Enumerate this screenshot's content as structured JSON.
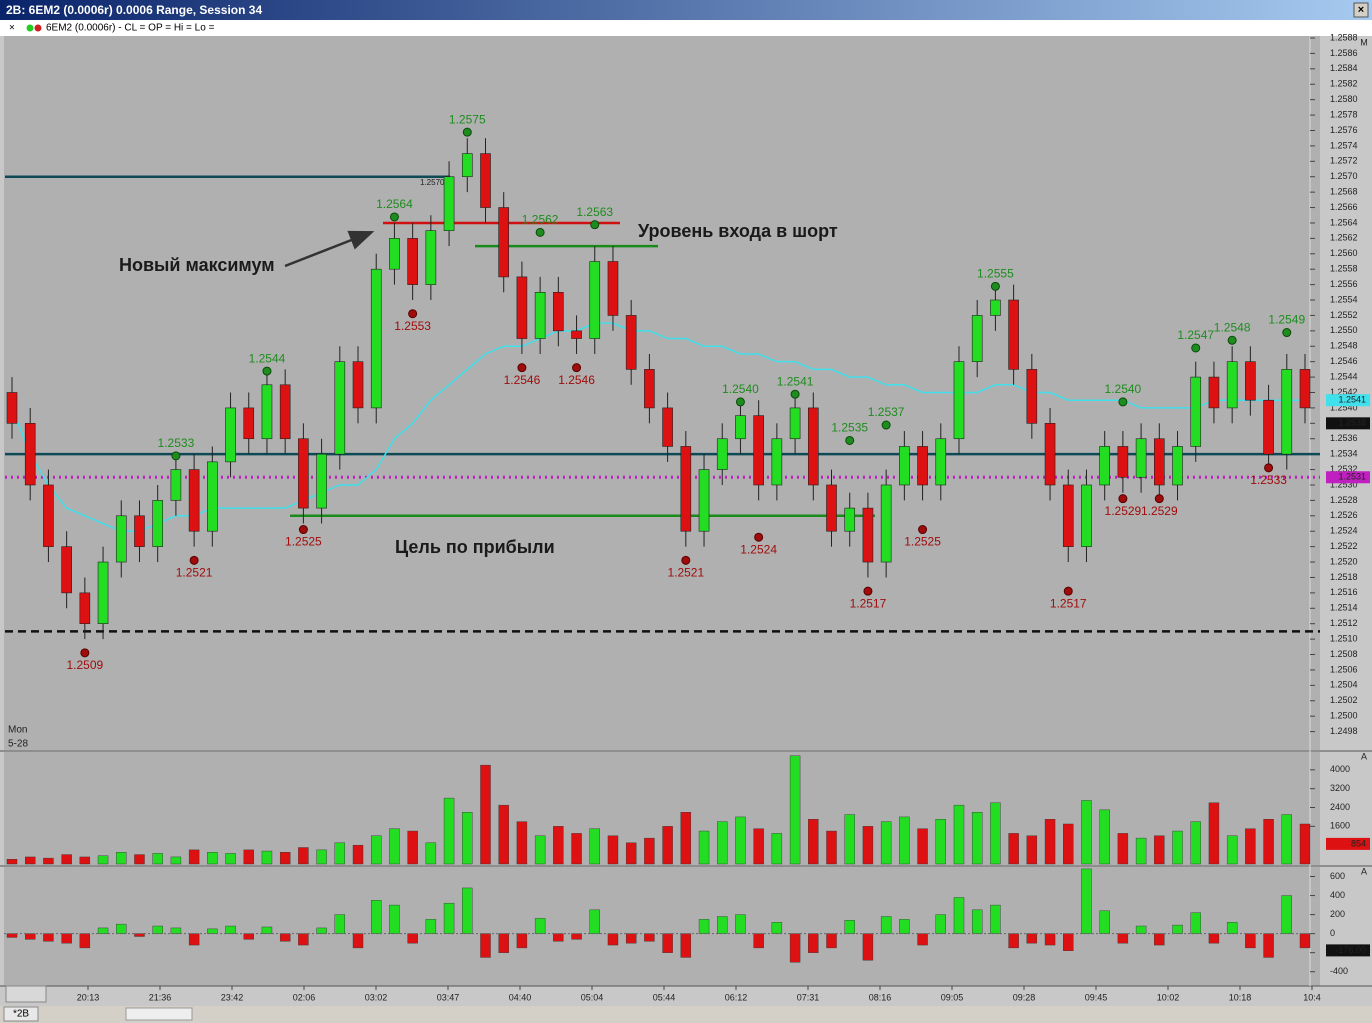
{
  "window": {
    "title": "2B: 6EM2 (0.0006r) 0.0006 Range, Session 34",
    "indicator_line": "6EM2 (0.0006r) - CL = OP = Hi = Lo =",
    "tab": "*2B",
    "day": "Mon",
    "date": "5-28"
  },
  "time_labels": [
    "20:13",
    "21:36",
    "23:42",
    "02:06",
    "03:02",
    "03:47",
    "04:40",
    "05:04",
    "05:44",
    "06:12",
    "07:31",
    "08:16",
    "09:05",
    "09:28",
    "09:45",
    "10:02",
    "10:18",
    "10:4"
  ],
  "chart_data": [
    {
      "type": "candlestick",
      "up_color": "#22dd22",
      "down_color": "#dd1111",
      "ylim": [
        1.2496,
        1.2588
      ],
      "yticks": [
        1.2588,
        1.2586,
        1.2584,
        1.2582,
        {
          "value": 1.258,
          "label": "1.2580"
        },
        1.2578,
        1.2576,
        1.2574,
        1.2572,
        {
          "value": 1.257,
          "label": "1.2570"
        },
        1.2568,
        1.2566,
        1.2564,
        1.2562,
        {
          "value": 1.256,
          "label": "1.2560"
        },
        1.2558,
        1.2556,
        1.2554,
        1.2552,
        {
          "value": 1.255,
          "label": "1.2550"
        },
        1.2548,
        1.2546,
        1.2544,
        1.2542,
        {
          "value": 1.254,
          "label": "1.2540"
        },
        1.2538,
        1.2536,
        1.2534,
        1.2532,
        {
          "value": 1.253,
          "label": "1.2530"
        },
        1.2528,
        1.2526,
        1.2524,
        1.2522,
        {
          "value": 1.252,
          "label": "1.2520"
        },
        1.2518,
        1.2516,
        1.2514,
        1.2512,
        {
          "value": 1.251,
          "label": "1.2510"
        },
        1.2508,
        1.2506,
        1.2504,
        1.2502,
        {
          "value": 1.25,
          "label": "1.2500"
        },
        1.2498
      ],
      "open": [
        1.2542,
        1.2538,
        1.253,
        1.2522,
        1.2516,
        1.2512,
        1.252,
        1.2526,
        1.2522,
        1.2528,
        1.2532,
        1.2524,
        1.2533,
        1.254,
        1.2536,
        1.2543,
        1.2536,
        1.2527,
        1.2534,
        1.2546,
        1.254,
        1.2558,
        1.2562,
        1.2556,
        1.2563,
        1.257,
        1.2573,
        1.2566,
        1.2557,
        1.2549,
        1.2555,
        1.255,
        1.2549,
        1.2559,
        1.2552,
        1.2545,
        1.254,
        1.2535,
        1.2524,
        1.2532,
        1.2536,
        1.2539,
        1.253,
        1.2536,
        1.254,
        1.253,
        1.2524,
        1.2527,
        1.252,
        1.253,
        1.2535,
        1.253,
        1.2536,
        1.2546,
        1.2552,
        1.2554,
        1.2545,
        1.2538,
        1.253,
        1.2522,
        1.253,
        1.2535,
        1.2531,
        1.2536,
        1.253,
        1.2535,
        1.2544,
        1.254,
        1.2546,
        1.2541,
        1.2534,
        1.2545
      ],
      "high": [
        1.2544,
        1.254,
        1.2532,
        1.2524,
        1.2518,
        1.2522,
        1.2528,
        1.2528,
        1.253,
        1.2534,
        1.2534,
        1.2535,
        1.2542,
        1.2542,
        1.2545,
        1.2545,
        1.2538,
        1.2536,
        1.2548,
        1.2548,
        1.256,
        1.2564,
        1.2564,
        1.2565,
        1.2572,
        1.2575,
        1.2575,
        1.2568,
        1.2559,
        1.2557,
        1.2557,
        1.2552,
        1.2561,
        1.2561,
        1.2554,
        1.2547,
        1.2542,
        1.2537,
        1.2534,
        1.2538,
        1.2541,
        1.2541,
        1.2538,
        1.2542,
        1.2542,
        1.2532,
        1.2529,
        1.2529,
        1.2532,
        1.2537,
        1.2537,
        1.2538,
        1.2548,
        1.2554,
        1.2556,
        1.2556,
        1.2547,
        1.254,
        1.2532,
        1.2532,
        1.2537,
        1.2537,
        1.2538,
        1.2538,
        1.2537,
        1.2546,
        1.2546,
        1.2548,
        1.2548,
        1.2543,
        1.2547,
        1.2547
      ],
      "low": [
        1.2536,
        1.2528,
        1.252,
        1.2514,
        1.251,
        1.251,
        1.2518,
        1.252,
        1.252,
        1.2526,
        1.2522,
        1.2522,
        1.2531,
        1.2534,
        1.2534,
        1.2534,
        1.2525,
        1.2525,
        1.2532,
        1.2538,
        1.2538,
        1.2556,
        1.2554,
        1.2554,
        1.2561,
        1.2568,
        1.2564,
        1.2555,
        1.2547,
        1.2547,
        1.2548,
        1.2547,
        1.2547,
        1.255,
        1.2543,
        1.2538,
        1.2533,
        1.2522,
        1.2522,
        1.253,
        1.2534,
        1.2528,
        1.2528,
        1.2534,
        1.2528,
        1.2522,
        1.2522,
        1.2518,
        1.2518,
        1.2528,
        1.2528,
        1.2528,
        1.2534,
        1.2544,
        1.255,
        1.2543,
        1.2536,
        1.2528,
        1.252,
        1.252,
        1.2528,
        1.2529,
        1.2529,
        1.2528,
        1.2528,
        1.2533,
        1.2538,
        1.2538,
        1.2539,
        1.2532,
        1.2532,
        1.2538
      ],
      "close": [
        1.2538,
        1.253,
        1.2522,
        1.2516,
        1.2512,
        1.252,
        1.2526,
        1.2522,
        1.2528,
        1.2532,
        1.2524,
        1.2533,
        1.254,
        1.2536,
        1.2543,
        1.2536,
        1.2527,
        1.2534,
        1.2546,
        1.254,
        1.2558,
        1.2562,
        1.2556,
        1.2563,
        1.257,
        1.2573,
        1.2566,
        1.2557,
        1.2549,
        1.2555,
        1.255,
        1.2549,
        1.2559,
        1.2552,
        1.2545,
        1.254,
        1.2535,
        1.2524,
        1.2532,
        1.2536,
        1.2539,
        1.253,
        1.2536,
        1.254,
        1.253,
        1.2524,
        1.2527,
        1.252,
        1.253,
        1.2535,
        1.253,
        1.2536,
        1.2546,
        1.2552,
        1.2554,
        1.2545,
        1.2538,
        1.253,
        1.2522,
        1.253,
        1.2535,
        1.2531,
        1.2536,
        1.253,
        1.2535,
        1.2544,
        1.254,
        1.2546,
        1.2541,
        1.2534,
        1.2545,
        1.254
      ],
      "ma": {
        "color": "#40e0ec",
        "values": [
          1.254,
          1.2534,
          1.253,
          1.2527,
          1.2526,
          1.2525,
          1.2524,
          1.2524,
          1.2525,
          1.2526,
          1.2526,
          1.2527,
          1.2527,
          1.2527,
          1.2527,
          1.2527,
          1.2528,
          1.2529,
          1.253,
          1.253,
          1.2532,
          1.2536,
          1.2538,
          1.2541,
          1.2543,
          1.2545,
          1.2547,
          1.2548,
          1.2548,
          1.2549,
          1.255,
          1.255,
          1.2551,
          1.2551,
          1.255,
          1.255,
          1.2549,
          1.2549,
          1.2548,
          1.2548,
          1.2547,
          1.2547,
          1.2546,
          1.2546,
          1.2545,
          1.2545,
          1.2544,
          1.2544,
          1.2543,
          1.2543,
          1.2542,
          1.2542,
          1.2542,
          1.2542,
          1.2543,
          1.2543,
          1.2542,
          1.2542,
          1.2541,
          1.2541,
          1.2541,
          1.2541,
          1.254,
          1.254,
          1.254,
          1.254,
          1.2541,
          1.2541,
          1.2541,
          1.2541,
          1.2541,
          1.2541
        ]
      },
      "swing_high_color": "#1e8c1e",
      "swing_low_color": "#a00c0c",
      "swing_highs": [
        null,
        null,
        null,
        null,
        null,
        null,
        null,
        null,
        null,
        1.2533,
        null,
        null,
        null,
        null,
        1.2544,
        null,
        null,
        null,
        null,
        null,
        null,
        1.2564,
        null,
        null,
        null,
        1.2575,
        null,
        null,
        null,
        1.2562,
        null,
        null,
        1.2563,
        null,
        null,
        null,
        null,
        null,
        null,
        null,
        1.254,
        null,
        null,
        1.2541,
        null,
        null,
        1.2535,
        null,
        1.2537,
        null,
        null,
        null,
        null,
        null,
        1.2555,
        null,
        null,
        null,
        null,
        null,
        null,
        1.254,
        null,
        null,
        null,
        1.2547,
        null,
        1.2548,
        null,
        null,
        1.2549,
        null
      ],
      "swing_high_labels": [
        null,
        null,
        null,
        null,
        null,
        null,
        null,
        null,
        null,
        "1.2533",
        null,
        null,
        null,
        null,
        "1.2544",
        null,
        null,
        null,
        null,
        null,
        null,
        "1.2564",
        null,
        null,
        null,
        "1.2575",
        null,
        null,
        null,
        "1.2562",
        null,
        null,
        "1.2563",
        null,
        null,
        null,
        null,
        null,
        null,
        null,
        "1.2540",
        null,
        null,
        "1.2541",
        null,
        null,
        "1.2535",
        null,
        "1.2537",
        null,
        null,
        null,
        null,
        null,
        "1.2555",
        null,
        null,
        null,
        null,
        null,
        null,
        "1.2540",
        null,
        null,
        null,
        "1.2547",
        null,
        "1.2548",
        null,
        null,
        "1.2549",
        null
      ],
      "swing_lows": [
        null,
        null,
        null,
        null,
        1.2509,
        null,
        null,
        null,
        null,
        null,
        1.2521,
        null,
        null,
        null,
        null,
        null,
        1.2525,
        null,
        null,
        null,
        null,
        null,
        1.2553,
        null,
        null,
        null,
        null,
        null,
        1.2546,
        null,
        null,
        1.2546,
        null,
        null,
        null,
        null,
        null,
        1.2521,
        null,
        null,
        null,
        1.2524,
        null,
        null,
        null,
        null,
        null,
        1.2517,
        null,
        null,
        1.2525,
        null,
        null,
        null,
        null,
        null,
        null,
        null,
        1.2517,
        null,
        null,
        1.2529,
        null,
        1.2529,
        null,
        null,
        null,
        null,
        null,
        1.2533,
        null,
        null
      ],
      "swing_low_labels": [
        null,
        null,
        null,
        null,
        "1.2509",
        null,
        null,
        null,
        null,
        null,
        "1.2521",
        null,
        null,
        null,
        null,
        null,
        "1.2525",
        null,
        null,
        null,
        null,
        null,
        "1.2553",
        null,
        null,
        null,
        null,
        null,
        "1.2546",
        null,
        null,
        "1.2546",
        null,
        null,
        null,
        null,
        null,
        "1.2521",
        null,
        null,
        null,
        "1.2524",
        null,
        null,
        null,
        null,
        null,
        "1.2517",
        null,
        null,
        "1.2525",
        null,
        null,
        null,
        null,
        null,
        null,
        null,
        "1.2517",
        null,
        null,
        "1.2529",
        null,
        "1.2529",
        null,
        null,
        null,
        null,
        null,
        "1.2533",
        null,
        null
      ],
      "levels": [
        {
          "value": 1.257,
          "color": "#0e4a55",
          "style": "solid",
          "label": "1.2570"
        },
        {
          "value": 1.2534,
          "color": "#0e4a55",
          "style": "solid"
        },
        {
          "value": 1.2531,
          "color": "#c020c0",
          "style": "dotted"
        },
        {
          "value": 1.2511,
          "color": "#111111",
          "style": "dashed"
        },
        {
          "value": 1.2564,
          "color": "#d01010",
          "style": "solid"
        },
        {
          "value": 1.2561,
          "color": "#1a8a1a",
          "style": "solid"
        },
        {
          "value": 1.2526,
          "color": "#1a8a1a",
          "style": "solid"
        }
      ],
      "price_tags": [
        {
          "value": 1.2541,
          "label": "1.2541",
          "color": "#40e0ec"
        },
        {
          "value": 1.2538,
          "label": "1.2538",
          "color": "#111111"
        },
        {
          "value": 1.2531,
          "label": "1.2531",
          "color": "#c020c0"
        }
      ],
      "annotations": [
        "Новый максимум",
        "Уровень входа в шорт",
        "Цель по прибыли"
      ]
    },
    {
      "type": "volume",
      "ylim": [
        0,
        4800
      ],
      "yticks": [
        1600,
        2400,
        3200,
        4000
      ],
      "tag": 854,
      "values": [
        200,
        300,
        250,
        400,
        300,
        350,
        500,
        400,
        450,
        300,
        600,
        500,
        450,
        600,
        550,
        500,
        700,
        600,
        900,
        800,
        1200,
        1500,
        1400,
        900,
        2800,
        2200,
        4200,
        2500,
        1800,
        1200,
        1600,
        1300,
        1500,
        1200,
        900,
        1100,
        1600,
        2200,
        1400,
        1800,
        2000,
        1500,
        1300,
        4600,
        1900,
        1400,
        2100,
        1600,
        1800,
        2000,
        1500,
        1900,
        2500,
        2200,
        2600,
        1300,
        1200,
        1900,
        1700,
        2700,
        2300,
        1300,
        1100,
        1200,
        1400,
        1800,
        2600,
        1200,
        1500,
        1900,
        2100,
        1700
      ]
    },
    {
      "type": "delta",
      "ylim": [
        -550,
        700
      ],
      "yticks": [
        600,
        400,
        200,
        0,
        -200,
        -400
      ],
      "tag": {
        "value": -176,
        "label": "-176.00"
      },
      "values": [
        -40,
        -60,
        -80,
        -100,
        -150,
        60,
        100,
        -30,
        80,
        60,
        -120,
        50,
        80,
        -60,
        70,
        -80,
        -120,
        60,
        200,
        -150,
        350,
        300,
        -100,
        150,
        320,
        480,
        -250,
        -200,
        -150,
        160,
        -80,
        -60,
        250,
        -120,
        -100,
        -80,
        -200,
        -250,
        150,
        180,
        200,
        -150,
        120,
        -300,
        -200,
        -150,
        140,
        -280,
        180,
        150,
        -120,
        200,
        380,
        250,
        300,
        -150,
        -100,
        -120,
        -180,
        680,
        240,
        -100,
        80,
        -120,
        90,
        220,
        -100,
        120,
        -150,
        -250,
        400,
        -150
      ]
    }
  ]
}
